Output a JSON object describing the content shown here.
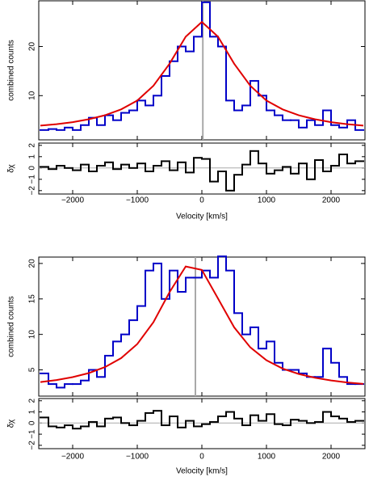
{
  "chart_data": [
    {
      "type": "histogram",
      "x_label": "Velocity [km/s]",
      "y_label": "combined counts",
      "residual_label": "δχ",
      "bins": [
        -2500,
        -2375,
        -2250,
        -2125,
        -2000,
        -1875,
        -1750,
        -1625,
        -1500,
        -1375,
        -1250,
        -1125,
        -1000,
        -875,
        -750,
        -625,
        -500,
        -375,
        -250,
        -125,
        0,
        125,
        250,
        375,
        500,
        625,
        750,
        875,
        1000,
        1125,
        1250,
        1375,
        1500,
        1625,
        1750,
        1875,
        2000,
        2125,
        2250,
        2375,
        2500
      ],
      "values": [
        3,
        3.2,
        3,
        3.5,
        3,
        4,
        5.5,
        4,
        6,
        5,
        6.5,
        7,
        9,
        8,
        10,
        14,
        17,
        20,
        19,
        22,
        29,
        22,
        20,
        9,
        7,
        8,
        13,
        10,
        7,
        6,
        5,
        5,
        3.5,
        5,
        4,
        7,
        4,
        3.5,
        5,
        3
      ],
      "color": "#0000c8",
      "model_x": [
        -2500,
        -2250,
        -2000,
        -1750,
        -1500,
        -1250,
        -1000,
        -750,
        -500,
        -250,
        0,
        250,
        500,
        750,
        1000,
        1250,
        1500,
        1750,
        2000,
        2250,
        2500
      ],
      "model_values": [
        3.9,
        4.2,
        4.6,
        5.2,
        6.0,
        7.2,
        9.0,
        12.0,
        16.5,
        22.0,
        25,
        22.0,
        16.5,
        12.0,
        9.0,
        7.2,
        6.0,
        5.2,
        4.6,
        4.2,
        3.9
      ],
      "model_color": "#e00000",
      "marker_x": 15,
      "marker_color": "#a8a8a8",
      "xlim": [
        -2525,
        2525
      ],
      "xticks": [
        {
          "value": -2000,
          "label": "−2000"
        },
        {
          "value": -1000,
          "label": "−1000"
        },
        0,
        1000,
        2000
      ],
      "ylim": [
        1,
        29.3
      ],
      "yticks": [
        10,
        20
      ],
      "residual_values": [
        0.1,
        -0.1,
        0.2,
        0,
        -0.2,
        0.3,
        -0.3,
        0.2,
        0.5,
        -0.1,
        0.3,
        0,
        0.4,
        -0.3,
        0.2,
        0.6,
        -0.2,
        0.5,
        -0.4,
        0.9,
        0.8,
        -1.2,
        -0.3,
        -2.0,
        -0.6,
        0.3,
        1.5,
        0.4,
        -0.5,
        -0.2,
        0.1,
        -0.5,
        0.4,
        -1.0,
        0.7,
        -0.3,
        0.2,
        1.2,
        0.4,
        0.6
      ],
      "residual_color": "#000000",
      "residual_ref": 0,
      "residual_ylim": [
        -2.3,
        2.2
      ],
      "residual_yticks": [
        {
          "value": -2,
          "label": "−2"
        },
        {
          "value": -1,
          "label": "−1"
        },
        0,
        1,
        2
      ]
    },
    {
      "type": "histogram",
      "x_label": "Velocity [km/s]",
      "y_label": "combined counts",
      "residual_label": "δχ",
      "bins": [
        -2500,
        -2375,
        -2250,
        -2125,
        -2000,
        -1875,
        -1750,
        -1625,
        -1500,
        -1375,
        -1250,
        -1125,
        -1000,
        -875,
        -750,
        -625,
        -500,
        -375,
        -250,
        -125,
        0,
        125,
        250,
        375,
        500,
        625,
        750,
        875,
        1000,
        1125,
        1250,
        1375,
        1500,
        1625,
        1750,
        1875,
        2000,
        2125,
        2250,
        2375,
        2500
      ],
      "values": [
        4.5,
        3,
        2.5,
        3,
        3,
        3.5,
        5,
        4,
        7,
        9,
        10,
        12,
        14,
        19,
        20,
        15,
        19,
        16,
        18,
        18,
        19,
        18,
        21,
        19,
        13,
        10,
        11,
        8,
        9,
        6,
        5,
        5,
        4.5,
        4,
        4,
        8,
        6,
        4,
        3,
        3
      ],
      "color": "#0000c8",
      "model_x": [
        -2500,
        -2250,
        -2000,
        -1750,
        -1500,
        -1250,
        -1000,
        -750,
        -500,
        -250,
        0,
        250,
        500,
        750,
        1000,
        1250,
        1500,
        1750,
        2000,
        2250,
        2500
      ],
      "model_values": [
        3.28,
        3.57,
        3.98,
        4.55,
        5.39,
        6.66,
        8.64,
        11.72,
        15.95,
        19.58,
        19.09,
        15.05,
        11.0,
        8.17,
        6.36,
        5.19,
        4.42,
        3.89,
        3.51,
        3.23,
        3.02
      ],
      "model_color": "#e00000",
      "marker_x": -100,
      "marker_color": "#a8a8a8",
      "xlim": [
        -2525,
        2525
      ],
      "xticks": [
        {
          "value": -2000,
          "label": "−2000"
        },
        {
          "value": -1000,
          "label": "−1000"
        },
        0,
        1000,
        2000
      ],
      "ylim": [
        1.3,
        20.9
      ],
      "yticks": [
        5,
        10,
        15,
        20
      ],
      "residual_values": [
        0.5,
        -0.3,
        -0.4,
        -0.2,
        -0.5,
        -0.3,
        0.1,
        -0.3,
        0.4,
        0.5,
        0,
        -0.2,
        0.2,
        0.9,
        1.1,
        -0.2,
        0.6,
        -0.4,
        0.2,
        -0.3,
        -0.1,
        0.1,
        0.6,
        1.0,
        0.4,
        -0.2,
        0.7,
        0.2,
        0.8,
        -0.1,
        -0.2,
        0.3,
        0.2,
        0,
        0.1,
        1.0,
        0.6,
        0.4,
        0.1,
        0.2
      ],
      "residual_color": "#000000",
      "residual_ref": 0,
      "residual_ylim": [
        -2.3,
        2.2
      ],
      "residual_yticks": [
        {
          "value": -2,
          "label": "−2"
        },
        {
          "value": -1,
          "label": "−1"
        },
        0,
        1,
        2
      ]
    }
  ]
}
